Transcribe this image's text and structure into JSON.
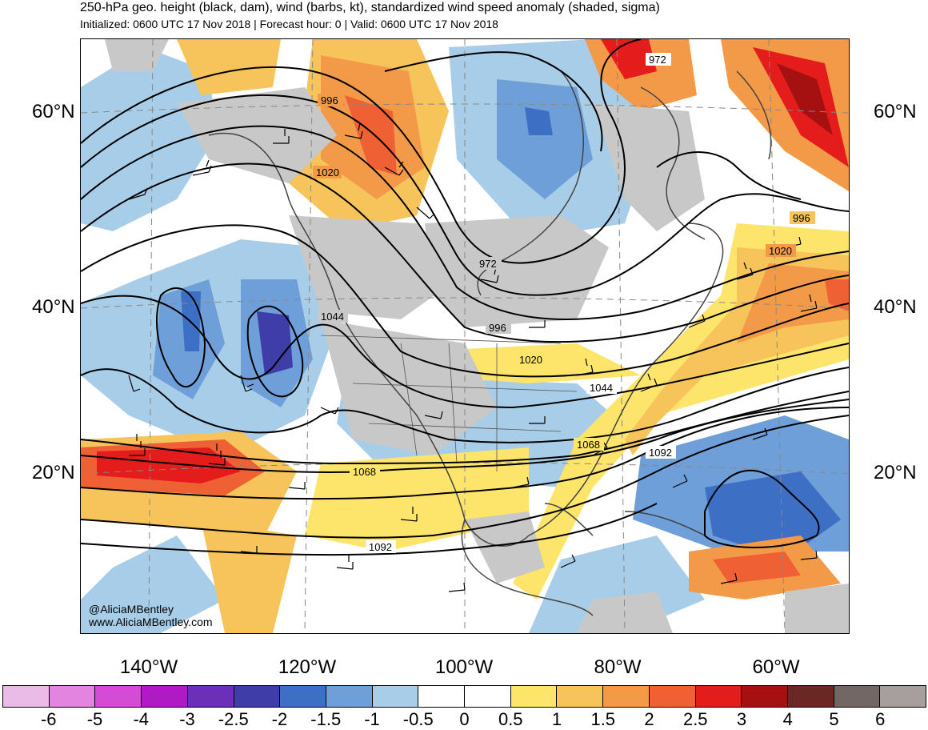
{
  "title": "250-hPa geo. height (black, dam), wind (barbs, kt), standardized wind speed anomaly (shaded, sigma)",
  "subtitle": "Initialized: 0600 UTC 17 Nov 2018 | Forecast hour: 0 | Valid: 0600 UTC 17 Nov 2018",
  "lat_labels": [
    "60°N",
    "40°N",
    "20°N"
  ],
  "lon_labels": [
    "140°W",
    "120°W",
    "100°W",
    "80°W",
    "60°W"
  ],
  "contour_labels": [
    "972",
    "996",
    "1020",
    "1044",
    "1068",
    "1092"
  ],
  "credit": {
    "handle": "@AliciaMBentley",
    "site": "www.AliciaMBentley.com"
  },
  "colorbar": {
    "labels": [
      "-6",
      "-5",
      "-4",
      "-3",
      "-2.5",
      "-2",
      "-1.5",
      "-1",
      "-0.5",
      "0",
      "0.5",
      "1",
      "1.5",
      "2",
      "2.5",
      "3",
      "4",
      "5",
      "6"
    ],
    "colors": [
      "#ebbbe8",
      "#e385e0",
      "#d44cd4",
      "#b01ac4",
      "#6b2fb8",
      "#3f3da8",
      "#3d6fc4",
      "#6f9fd8",
      "#a8cde8",
      "#ffffff",
      "#ffffff",
      "#fde46a",
      "#f6c45a",
      "#f39a48",
      "#ef6135",
      "#e41c1c",
      "#a51011",
      "#6c2624",
      "#736766",
      "#a79e9e"
    ]
  }
}
